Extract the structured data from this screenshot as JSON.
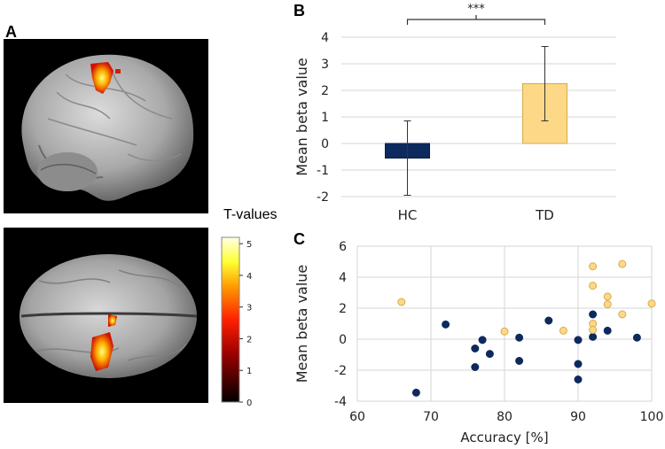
{
  "panels": {
    "a": "A",
    "b": "B",
    "c": "C"
  },
  "colorbar": {
    "title": "T-values",
    "ticks": [
      "0",
      "1",
      "2",
      "3",
      "4",
      "5"
    ],
    "max": 5.2
  },
  "chart_data": [
    {
      "type": "bar",
      "panel": "B",
      "categories": [
        "HC",
        "TD"
      ],
      "values": [
        -0.55,
        2.25
      ],
      "error_low": [
        -1.95,
        0.85
      ],
      "error_high": [
        0.85,
        3.65
      ],
      "bar_colors": [
        "#0d2a5e",
        "#fcd887"
      ],
      "bar_edges": [
        "#0a1f48",
        "#d9a94a"
      ],
      "ylabel": "Mean beta value",
      "ylim": [
        -2,
        4
      ],
      "yticks": [
        -2,
        -1,
        0,
        1,
        2,
        3,
        4
      ],
      "ytick_labels": [
        "-2",
        "-1",
        "0",
        "1",
        "2",
        "3",
        "4"
      ],
      "significance": "***"
    },
    {
      "type": "scatter",
      "panel": "C",
      "xlabel": "Accuracy [%]",
      "ylabel": "Mean beta value",
      "xlim": [
        60,
        100
      ],
      "ylim": [
        -4,
        6
      ],
      "xticks": [
        60,
        70,
        80,
        90,
        100
      ],
      "yticks": [
        -4,
        -2,
        0,
        2,
        4,
        6
      ],
      "xtick_labels": [
        "60",
        "70",
        "80",
        "90",
        "100"
      ],
      "ytick_labels": [
        "-4",
        "-2",
        "0",
        "2",
        "4",
        "6"
      ],
      "series": [
        {
          "name": "HC",
          "color": "#0d2a5e",
          "points": [
            [
              68,
              -3.45
            ],
            [
              72,
              0.95
            ],
            [
              76,
              -0.6
            ],
            [
              76,
              -1.8
            ],
            [
              77,
              -0.05
            ],
            [
              78,
              -0.95
            ],
            [
              82,
              0.1
            ],
            [
              82,
              -1.4
            ],
            [
              86,
              1.2
            ],
            [
              90,
              -0.05
            ],
            [
              90,
              -1.6
            ],
            [
              90,
              -2.6
            ],
            [
              92,
              1.6
            ],
            [
              92,
              0.15
            ],
            [
              94,
              0.55
            ],
            [
              98,
              0.1
            ]
          ]
        },
        {
          "name": "TD",
          "color": "#fcd887",
          "edge": "#d9a94a",
          "points": [
            [
              66,
              2.4
            ],
            [
              80,
              0.5
            ],
            [
              88,
              0.55
            ],
            [
              92,
              4.7
            ],
            [
              92,
              3.45
            ],
            [
              92,
              1.0
            ],
            [
              92,
              0.6
            ],
            [
              94,
              2.75
            ],
            [
              94,
              2.25
            ],
            [
              96,
              4.85
            ],
            [
              96,
              1.6
            ],
            [
              100,
              2.3
            ]
          ]
        }
      ]
    }
  ]
}
